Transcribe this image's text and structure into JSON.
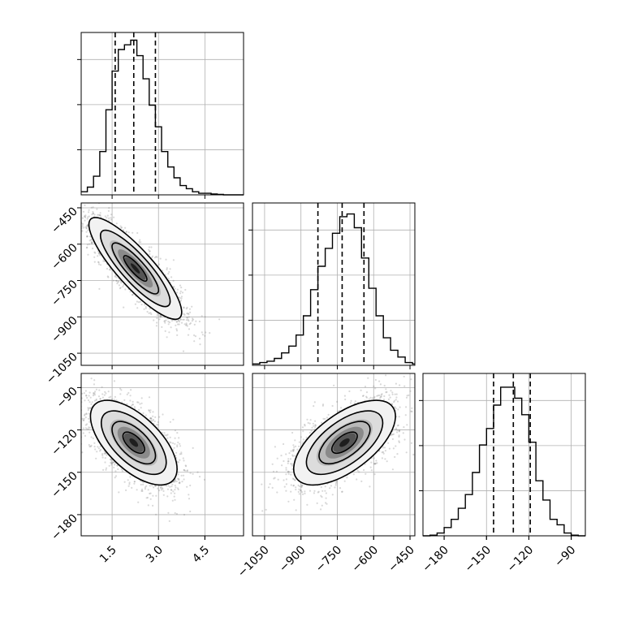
{
  "chart_data": {
    "type": "corner",
    "title": "",
    "grid": true,
    "parameters": [
      {
        "range": [
          0.5,
          5.75
        ],
        "ticks": [
          1.5,
          3.0,
          4.5
        ],
        "tick_labels": [
          "1.5",
          "3.0",
          "4.5"
        ],
        "quantiles": [
          1.6,
          2.2,
          2.9
        ],
        "hist": {
          "edges": [
            0.5,
            0.7,
            0.9,
            1.1,
            1.3,
            1.5,
            1.7,
            1.9,
            2.1,
            2.3,
            2.5,
            2.7,
            2.9,
            3.1,
            3.3,
            3.5,
            3.7,
            3.9,
            4.1,
            4.3,
            4.5,
            4.7,
            4.9,
            5.1,
            5.75
          ],
          "counts": [
            2,
            5,
            12,
            28,
            55,
            80,
            94,
            97,
            100,
            90,
            75,
            58,
            44,
            28,
            18,
            11,
            6,
            4,
            2,
            1,
            1,
            0.5,
            0.3,
            0
          ],
          "ymax": 105
        }
      },
      {
        "range": [
          -1100,
          -430
        ],
        "ticks": [
          -1050,
          -900,
          -750,
          -600,
          -450
        ],
        "tick_labels": [
          "−1050",
          "−900",
          "−750",
          "−600",
          "−450"
        ],
        "quantiles": [
          -830,
          -730,
          -640
        ],
        "hist": {
          "edges": [
            -1100,
            -1070,
            -1040,
            -1010,
            -980,
            -950,
            -920,
            -890,
            -860,
            -830,
            -800,
            -770,
            -740,
            -710,
            -680,
            -650,
            -620,
            -590,
            -560,
            -530,
            -500,
            -470,
            -440,
            -430
          ],
          "counts": [
            1,
            2,
            3,
            5,
            9,
            14,
            22,
            36,
            55,
            72,
            85,
            96,
            108,
            110,
            100,
            78,
            56,
            36,
            20,
            11,
            6,
            2,
            1
          ],
          "ymax": 118
        }
      },
      {
        "range": [
          -195,
          -80
        ],
        "ticks": [
          -180,
          -150,
          -120,
          -90
        ],
        "tick_labels": [
          "−180",
          "−150",
          "−120",
          "−90"
        ],
        "quantiles": [
          -145,
          -131,
          -119
        ],
        "hist": {
          "edges": [
            -195,
            -190,
            -185,
            -180,
            -175,
            -170,
            -165,
            -160,
            -155,
            -150,
            -145,
            -140,
            -135,
            -130,
            -125,
            -120,
            -115,
            -110,
            -105,
            -100,
            -95,
            -90,
            -85,
            -80
          ],
          "counts": [
            0,
            0.5,
            2,
            6,
            12,
            20,
            30,
            46,
            66,
            78,
            95,
            108,
            108,
            100,
            88,
            68,
            40,
            26,
            12,
            8,
            2,
            0.5,
            0
          ],
          "ymax": 118
        }
      }
    ],
    "pairs": [
      {
        "x": 0,
        "y": 1,
        "center": [
          2.25,
          -700
        ],
        "sx": 0.75,
        "sy": 105,
        "rho": -0.86,
        "yticks": [
          -1050,
          -900,
          -750,
          -600,
          -450
        ],
        "ytick_labels": [
          "−1050",
          "−900",
          "−750",
          "−600",
          "−450"
        ]
      },
      {
        "x": 0,
        "y": 2,
        "center": [
          2.2,
          -129
        ],
        "sx": 0.7,
        "sy": 15,
        "rho": -0.62,
        "yticks": [
          -180,
          -150,
          -120,
          -90
        ],
        "ytick_labels": [
          "−180",
          "−150",
          "−120",
          "−90"
        ]
      },
      {
        "x": 1,
        "y": 2,
        "center": [
          -720,
          -129
        ],
        "sx": 105,
        "sy": 15,
        "rho": 0.62
      }
    ],
    "contour_sigmas": [
      0.5,
      1.0,
      1.5,
      2.0
    ],
    "colors": {
      "points": "#777777",
      "line": "#000000",
      "grid": "#b0b0b0"
    }
  }
}
